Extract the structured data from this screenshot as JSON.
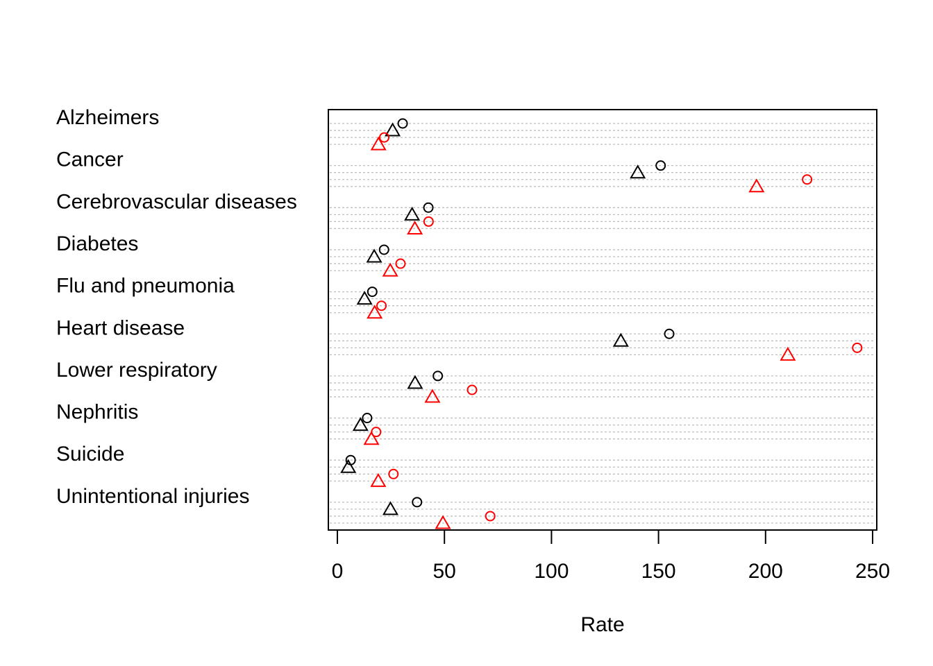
{
  "chart_data": {
    "type": "scatter",
    "title": "",
    "xlabel": "Rate",
    "ylabel": "",
    "xlim": [
      0,
      250
    ],
    "x_ticks": [
      0,
      50,
      100,
      150,
      200,
      250
    ],
    "categories": [
      "Alzheimers",
      "Cancer",
      "Cerebrovascular diseases",
      "Diabetes",
      "Flu and pneumonia",
      "Heart disease",
      "Lower respiratory",
      "Nephritis",
      "Suicide",
      "Unintentional injuries"
    ],
    "grid": true,
    "legend": "none",
    "series": [
      {
        "marker": "circle",
        "color": "#000000",
        "values": [
          30.5,
          151,
          42.5,
          21.8,
          16.3,
          155,
          46.9,
          13.9,
          6.2,
          37.2
        ]
      },
      {
        "marker": "triangle",
        "color": "#000000",
        "values": [
          25.8,
          140.3,
          34.9,
          17.2,
          12.7,
          132.4,
          36.3,
          10.8,
          5.1,
          24.8
        ]
      },
      {
        "marker": "circle",
        "color": "#ff0000",
        "values": [
          21.9,
          219.4,
          42.6,
          29.5,
          20.6,
          242.8,
          62.9,
          18.1,
          26.2,
          71.4
        ]
      },
      {
        "marker": "triangle",
        "color": "#ff0000",
        "values": [
          19.2,
          195.8,
          36.2,
          24.7,
          17.4,
          210.4,
          44.4,
          15.9,
          19.1,
          49.3
        ]
      }
    ]
  }
}
